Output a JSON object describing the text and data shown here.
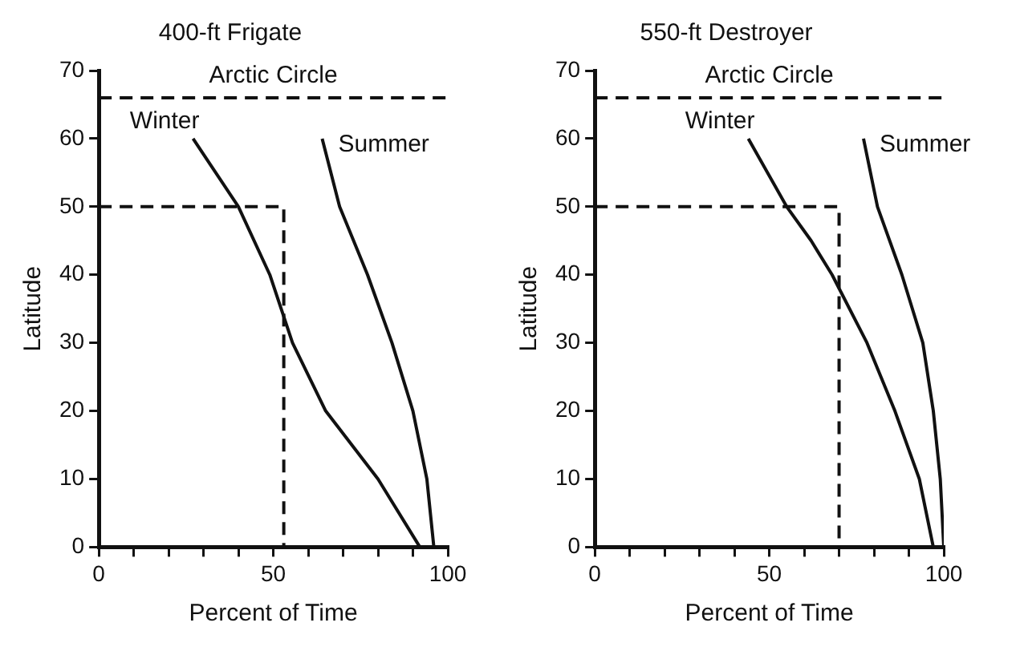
{
  "chart_data": [
    {
      "type": "line",
      "title": "400-ft Frigate",
      "xlabel": "Percent of Time",
      "ylabel": "Latitude",
      "xlim": [
        0,
        100
      ],
      "ylim": [
        0,
        70
      ],
      "xticks": [
        0,
        {
          "value": 10,
          "label": null
        },
        {
          "value": 20,
          "label": null
        },
        {
          "value": 30,
          "label": null
        },
        {
          "value": 40,
          "label": null
        },
        50,
        {
          "value": 60,
          "label": null
        },
        {
          "value": 70,
          "label": null
        },
        {
          "value": 80,
          "label": null
        },
        {
          "value": 90,
          "label": null
        },
        100
      ],
      "yticks": [
        0,
        10,
        20,
        30,
        40,
        50,
        60,
        70
      ],
      "grid": false,
      "legend": false,
      "marker": "none",
      "series": [
        {
          "name": "Winter",
          "color": "#111111",
          "x": [
            27,
            40,
            49,
            55.5,
            65,
            80,
            92
          ],
          "values": [
            60,
            50,
            40,
            30,
            20,
            10,
            0
          ]
        },
        {
          "name": "Summer",
          "color": "#111111",
          "x": [
            64,
            69,
            77,
            84,
            90,
            94,
            96
          ],
          "values": [
            60,
            50,
            40,
            30,
            20,
            10,
            0
          ]
        },
        {
          "color": "#111111",
          "line_style": "dashed",
          "x": [
            0,
            53,
            53
          ],
          "values": [
            50,
            50,
            0
          ]
        }
      ],
      "ref_lines": [
        {
          "axis": "y",
          "value": 66,
          "label": "Arctic Circle",
          "line_style": "dashed",
          "color": "#111111"
        }
      ]
    },
    {
      "type": "line",
      "title": "550-ft Destroyer",
      "xlabel": "Percent of Time",
      "ylabel": "Latitude",
      "xlim": [
        0,
        100
      ],
      "ylim": [
        0,
        70
      ],
      "xticks": [
        0,
        {
          "value": 10,
          "label": null
        },
        {
          "value": 20,
          "label": null
        },
        {
          "value": 30,
          "label": null
        },
        {
          "value": 40,
          "label": null
        },
        50,
        {
          "value": 60,
          "label": null
        },
        {
          "value": 70,
          "label": null
        },
        {
          "value": 80,
          "label": null
        },
        {
          "value": 90,
          "label": null
        },
        100
      ],
      "yticks": [
        0,
        10,
        20,
        30,
        40,
        50,
        60,
        70
      ],
      "grid": false,
      "legend": false,
      "marker": "none",
      "series": [
        {
          "name": "Winter",
          "color": "#111111",
          "x": [
            44,
            55,
            62,
            68,
            78,
            86,
            93,
            97
          ],
          "values": [
            60,
            50,
            45,
            40,
            30,
            20,
            10,
            0
          ]
        },
        {
          "name": "Summer",
          "color": "#111111",
          "x": [
            77,
            81,
            88,
            94,
            97,
            99,
            100
          ],
          "values": [
            60,
            50,
            40,
            30,
            20,
            10,
            0
          ]
        },
        {
          "color": "#111111",
          "line_style": "dashed",
          "x": [
            0,
            70,
            70
          ],
          "values": [
            50,
            50,
            0
          ]
        }
      ],
      "ref_lines": [
        {
          "axis": "y",
          "value": 66,
          "label": "Arctic Circle",
          "line_style": "dashed",
          "color": "#111111"
        }
      ]
    }
  ]
}
